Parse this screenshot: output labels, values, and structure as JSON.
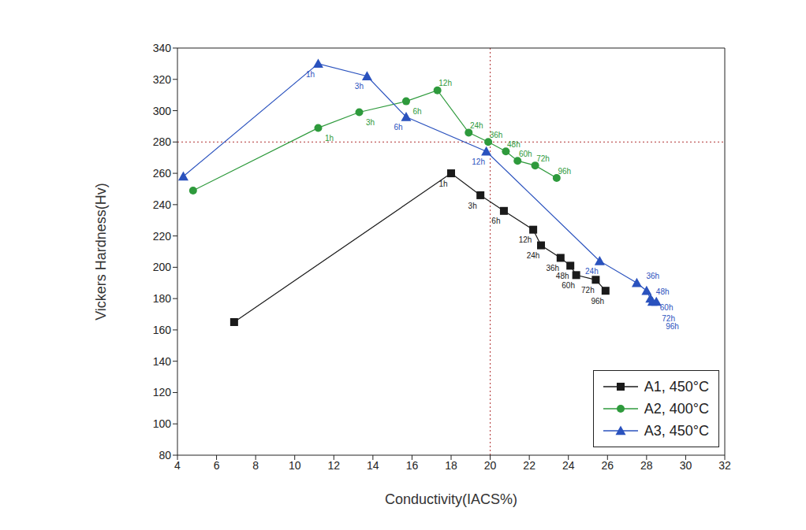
{
  "chart_data": {
    "type": "line",
    "x_label": "Conductivity(IACS%)",
    "y_label": "Vickers Hardness(Hv)",
    "xlim": [
      4,
      32
    ],
    "xticks": [
      4,
      6,
      8,
      10,
      12,
      14,
      16,
      18,
      20,
      22,
      24,
      26,
      28,
      30,
      32
    ],
    "ylim": [
      80,
      340
    ],
    "yticks": [
      80,
      100,
      120,
      140,
      160,
      180,
      200,
      220,
      240,
      260,
      280,
      300,
      320,
      340
    ],
    "grid": false,
    "legend": "lower right",
    "reference_lines": {
      "x": 20,
      "y": 280
    },
    "series": [
      {
        "name": "A1, 450°C",
        "color": "#1a1a1a",
        "marker": "square",
        "x": [
          6.9,
          18.0,
          19.5,
          20.7,
          22.2,
          22.6,
          23.6,
          24.1,
          24.4,
          25.4,
          25.9
        ],
        "values": [
          165,
          260,
          246,
          236,
          224,
          214,
          206,
          201,
          195,
          192,
          185
        ],
        "point_labels": [
          null,
          "1h",
          "3h",
          "6h",
          "12h",
          "24h",
          "36h",
          "48h",
          "60h",
          "72h",
          "96h"
        ]
      },
      {
        "name": "A2, 400°C",
        "color": "#2e9a3c",
        "marker": "circle",
        "x": [
          4.8,
          11.2,
          13.3,
          15.7,
          17.3,
          18.9,
          19.9,
          20.8,
          21.4,
          22.3,
          23.4
        ],
        "values": [
          249,
          289,
          299,
          306,
          313,
          286,
          280,
          274,
          268,
          265,
          257
        ],
        "point_labels": [
          null,
          "1h",
          "3h",
          "6h",
          "12h",
          "24h",
          "36h",
          "48h",
          "60h",
          "72h",
          "96h"
        ]
      },
      {
        "name": "A3, 450°C",
        "color": "#2a52be",
        "marker": "triangle",
        "x": [
          4.3,
          11.2,
          13.7,
          15.7,
          19.8,
          25.6,
          27.5,
          28.0,
          28.2,
          28.3,
          28.5
        ],
        "values": [
          258,
          330,
          322,
          296,
          274,
          204,
          190,
          185,
          180,
          178,
          178
        ],
        "point_labels": [
          null,
          "1h",
          "3h",
          "6h",
          "12h",
          "24h",
          "36h",
          "48h",
          "60h",
          "72h",
          "96h"
        ]
      }
    ]
  }
}
